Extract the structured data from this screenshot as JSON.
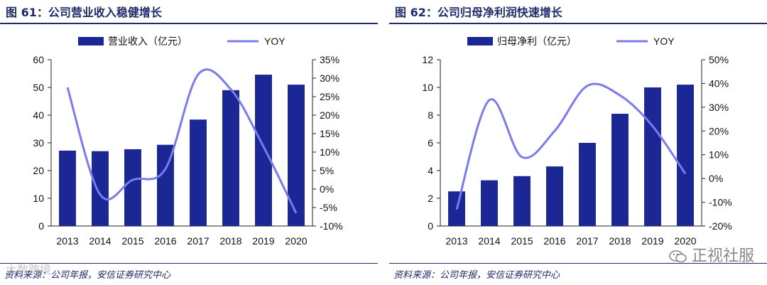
{
  "charts": [
    {
      "fig_title": "图 61：公司营业收入稳健增长",
      "source": "资料来源：公司年报，安信证券研究中心",
      "colors": {
        "bar": "#1a2794",
        "line": "#7b7bef"
      }
    },
    {
      "fig_title": "图 62：公司归母净利润快速增长",
      "source": "资料来源：公司年报，安信证券研究中心",
      "colors": {
        "bar": "#1a2794",
        "line": "#7b7bef"
      }
    }
  ],
  "watermarks": {
    "right": "正视社服",
    "left": "大数跨境"
  },
  "chart_data": [
    {
      "type": "bar",
      "combo": "bar+line",
      "title": "图 61：公司营业收入稳健增长",
      "categories": [
        "2013",
        "2014",
        "2015",
        "2016",
        "2017",
        "2018",
        "2019",
        "2020"
      ],
      "series": [
        {
          "name": "营业收入（亿元）",
          "type": "bar",
          "axis": "left",
          "values": [
            27.2,
            27.0,
            27.7,
            29.3,
            38.4,
            49.0,
            54.6,
            51.0
          ]
        },
        {
          "name": "YOY",
          "type": "line",
          "axis": "right",
          "values": [
            27.5,
            -1.5,
            2.5,
            5.5,
            31.0,
            27.0,
            11.5,
            -6.5
          ]
        }
      ],
      "ylim_left": [
        0,
        60
      ],
      "yticks_left": [
        "0",
        "10",
        "20",
        "30",
        "40",
        "50",
        "60"
      ],
      "ylim_right": [
        -10,
        35
      ],
      "yticks_right": [
        "-10%",
        "-5%",
        "0%",
        "5%",
        "10%",
        "15%",
        "20%",
        "25%",
        "30%",
        "35%"
      ],
      "legend": [
        "营业收入（亿元）",
        "YOY"
      ]
    },
    {
      "type": "bar",
      "combo": "bar+line",
      "title": "图 62：公司归母净利润快速增长",
      "categories": [
        "2013",
        "2014",
        "2015",
        "2016",
        "2017",
        "2018",
        "2019",
        "2020"
      ],
      "series": [
        {
          "name": "归母净利（亿元）",
          "type": "bar",
          "axis": "left",
          "values": [
            2.5,
            3.3,
            3.6,
            4.3,
            6.0,
            8.1,
            10.0,
            10.2
          ]
        },
        {
          "name": "YOY",
          "type": "line",
          "axis": "right",
          "values": [
            -13,
            33,
            9,
            20,
            39,
            35,
            22,
            2
          ]
        }
      ],
      "ylim_left": [
        0,
        12
      ],
      "yticks_left": [
        "0",
        "2",
        "4",
        "6",
        "8",
        "10",
        "12"
      ],
      "ylim_right": [
        -20,
        50
      ],
      "yticks_right": [
        "-20%",
        "-10%",
        "0%",
        "10%",
        "20%",
        "30%",
        "40%",
        "50%"
      ],
      "legend": [
        "归母净利（亿元）",
        "YOY"
      ]
    }
  ]
}
